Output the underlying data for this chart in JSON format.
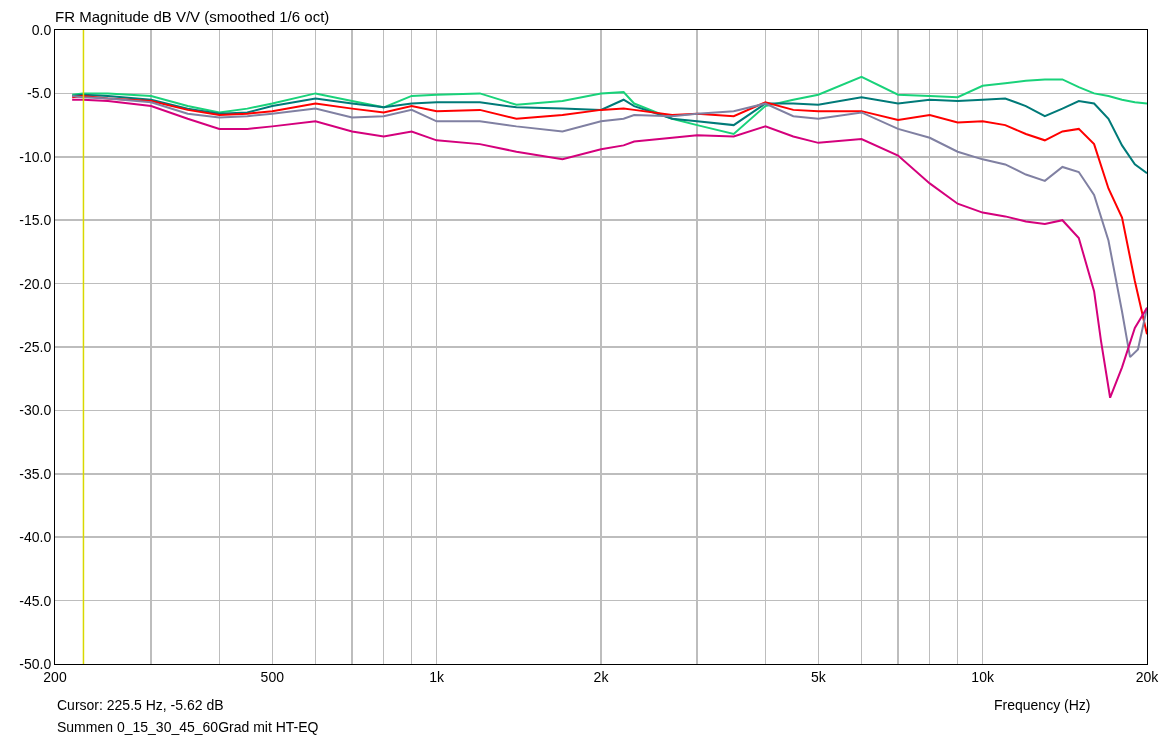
{
  "chart_data": {
    "type": "line",
    "title": "FR Magnitude dB V/V (smoothed 1/6 oct)",
    "xlabel": "Frequency (Hz)",
    "annotations": [
      "Cursor: 225.5 Hz, -5.62 dB",
      "Summen 0_15_30_45_60Grad mit HT-EQ"
    ],
    "log": "x",
    "grid": true,
    "line_style": "solid",
    "marker": "none",
    "xlim": [
      200,
      20000
    ],
    "ylim": [
      -50,
      0
    ],
    "xticks": [
      {
        "value": 200,
        "label": "200"
      },
      {
        "value": 300,
        "label": null
      },
      {
        "value": 400,
        "label": null
      },
      {
        "value": 500,
        "label": "500"
      },
      {
        "value": 600,
        "label": null
      },
      {
        "value": 700,
        "label": null
      },
      {
        "value": 800,
        "label": null
      },
      {
        "value": 900,
        "label": null
      },
      {
        "value": 1000,
        "label": "1k"
      },
      {
        "value": 2000,
        "label": "2k"
      },
      {
        "value": 3000,
        "label": null
      },
      {
        "value": 4000,
        "label": null
      },
      {
        "value": 5000,
        "label": "5k"
      },
      {
        "value": 6000,
        "label": null
      },
      {
        "value": 7000,
        "label": null
      },
      {
        "value": 8000,
        "label": null
      },
      {
        "value": 9000,
        "label": null
      },
      {
        "value": 10000,
        "label": "10k"
      },
      {
        "value": 20000,
        "label": "20k"
      }
    ],
    "yticks": [
      {
        "value": 0,
        "label": "0.0"
      },
      {
        "value": -5,
        "label": "-5.0"
      },
      {
        "value": -10,
        "label": "-10.0"
      },
      {
        "value": -15,
        "label": "-15.0"
      },
      {
        "value": -20,
        "label": "-20.0"
      },
      {
        "value": -25,
        "label": "-25.0"
      },
      {
        "value": -30,
        "label": "-30.0"
      },
      {
        "value": -35,
        "label": "-35.0"
      },
      {
        "value": -40,
        "label": "-40.0"
      },
      {
        "value": -45,
        "label": "-45.0"
      },
      {
        "value": -50,
        "label": "-50.0"
      }
    ],
    "ref_lines": [
      {
        "axis": "x",
        "value": 225.5,
        "color": "#d8d800"
      }
    ],
    "x": [
      215,
      225,
      250,
      300,
      350,
      400,
      450,
      500,
      600,
      700,
      800,
      900,
      1000,
      1200,
      1400,
      1700,
      2000,
      2200,
      2300,
      2700,
      3000,
      3500,
      4000,
      4500,
      5000,
      6000,
      7000,
      8000,
      9000,
      10000,
      11000,
      12000,
      13000,
      14000,
      15000,
      16000,
      17000,
      18000,
      19000,
      20000
    ],
    "series": [
      {
        "color": "#19d27a",
        "values": [
          -5.1,
          -5.0,
          -5.0,
          -5.2,
          -6.0,
          -6.5,
          -6.2,
          -5.8,
          -5.0,
          -5.6,
          -6.1,
          -5.2,
          -5.1,
          -5.0,
          -5.9,
          -5.6,
          -5.0,
          -4.9,
          -5.8,
          -7.0,
          -7.5,
          -8.2,
          -6.0,
          -5.5,
          -5.1,
          -3.7,
          -5.1,
          -5.2,
          -5.3,
          -4.4,
          -4.2,
          -4.0,
          -3.9,
          -3.9,
          -4.5,
          -5.0,
          -5.2,
          -5.5,
          -5.7,
          -5.8
        ]
      },
      {
        "color": "#007a78",
        "values": [
          -5.2,
          -5.1,
          -5.2,
          -5.5,
          -6.2,
          -6.6,
          -6.5,
          -6.0,
          -5.4,
          -5.8,
          -6.1,
          -5.8,
          -5.7,
          -5.7,
          -6.1,
          -6.2,
          -6.3,
          -5.5,
          -6.0,
          -7.0,
          -7.2,
          -7.5,
          -5.8,
          -5.8,
          -5.9,
          -5.3,
          -5.8,
          -5.5,
          -5.6,
          -5.5,
          -5.4,
          -6.0,
          -6.8,
          -6.2,
          -5.6,
          -5.8,
          -7.0,
          -9.1,
          -10.6,
          -11.3
        ]
      },
      {
        "color": "#ff0000",
        "values": [
          -5.3,
          -5.2,
          -5.4,
          -5.6,
          -6.3,
          -6.7,
          -6.6,
          -6.4,
          -5.8,
          -6.2,
          -6.5,
          -6.0,
          -6.4,
          -6.3,
          -7.0,
          -6.7,
          -6.3,
          -6.2,
          -6.3,
          -6.7,
          -6.6,
          -6.8,
          -5.7,
          -6.3,
          -6.4,
          -6.4,
          -7.1,
          -6.7,
          -7.3,
          -7.2,
          -7.5,
          -8.2,
          -8.7,
          -8.0,
          -7.8,
          -9.0,
          -12.5,
          -14.8,
          -19.8,
          -24.0
        ]
      },
      {
        "color": "#8080a2",
        "x": [
          215,
          225,
          250,
          300,
          350,
          400,
          450,
          500,
          600,
          700,
          800,
          900,
          1000,
          1200,
          1400,
          1700,
          2000,
          2200,
          2300,
          2700,
          3000,
          3500,
          4000,
          4500,
          5000,
          6000,
          7000,
          8000,
          9000,
          10000,
          11000,
          12000,
          13000,
          14000,
          15000,
          16000,
          17000,
          18000,
          18620,
          19250,
          20000
        ],
        "values": [
          -5.2,
          -5.3,
          -5.4,
          -5.7,
          -6.6,
          -6.9,
          -6.8,
          -6.6,
          -6.2,
          -6.9,
          -6.8,
          -6.3,
          -7.2,
          -7.2,
          -7.6,
          -8.0,
          -7.2,
          -7.0,
          -6.7,
          -6.8,
          -6.6,
          -6.4,
          -5.8,
          -6.8,
          -7.0,
          -6.5,
          -7.8,
          -8.5,
          -9.6,
          -10.2,
          -10.6,
          -11.4,
          -11.9,
          -10.8,
          -11.2,
          -13.0,
          -16.6,
          -22.2,
          -25.8,
          -25.2,
          -21.9
        ]
      },
      {
        "color": "#d4007c",
        "x": [
          215,
          225,
          250,
          300,
          350,
          400,
          450,
          500,
          600,
          700,
          800,
          900,
          1000,
          1200,
          1400,
          1700,
          2000,
          2200,
          2300,
          2700,
          3000,
          3500,
          4000,
          4500,
          5000,
          6000,
          7000,
          8000,
          9000,
          10000,
          11000,
          12000,
          13000,
          14000,
          15000,
          16000,
          16470,
          17120,
          18000,
          19000,
          20000
        ],
        "values": [
          -5.5,
          -5.5,
          -5.6,
          -6.0,
          -7.0,
          -7.8,
          -7.8,
          -7.6,
          -7.2,
          -8.0,
          -8.4,
          -8.0,
          -8.7,
          -9.0,
          -9.6,
          -10.2,
          -9.4,
          -9.1,
          -8.8,
          -8.5,
          -8.3,
          -8.4,
          -7.6,
          -8.4,
          -8.9,
          -8.6,
          -9.9,
          -12.1,
          -13.7,
          -14.4,
          -14.7,
          -15.1,
          -15.3,
          -15.0,
          -16.4,
          -20.6,
          -24.5,
          -29.0,
          -26.6,
          -23.5,
          -21.9
        ]
      }
    ]
  }
}
